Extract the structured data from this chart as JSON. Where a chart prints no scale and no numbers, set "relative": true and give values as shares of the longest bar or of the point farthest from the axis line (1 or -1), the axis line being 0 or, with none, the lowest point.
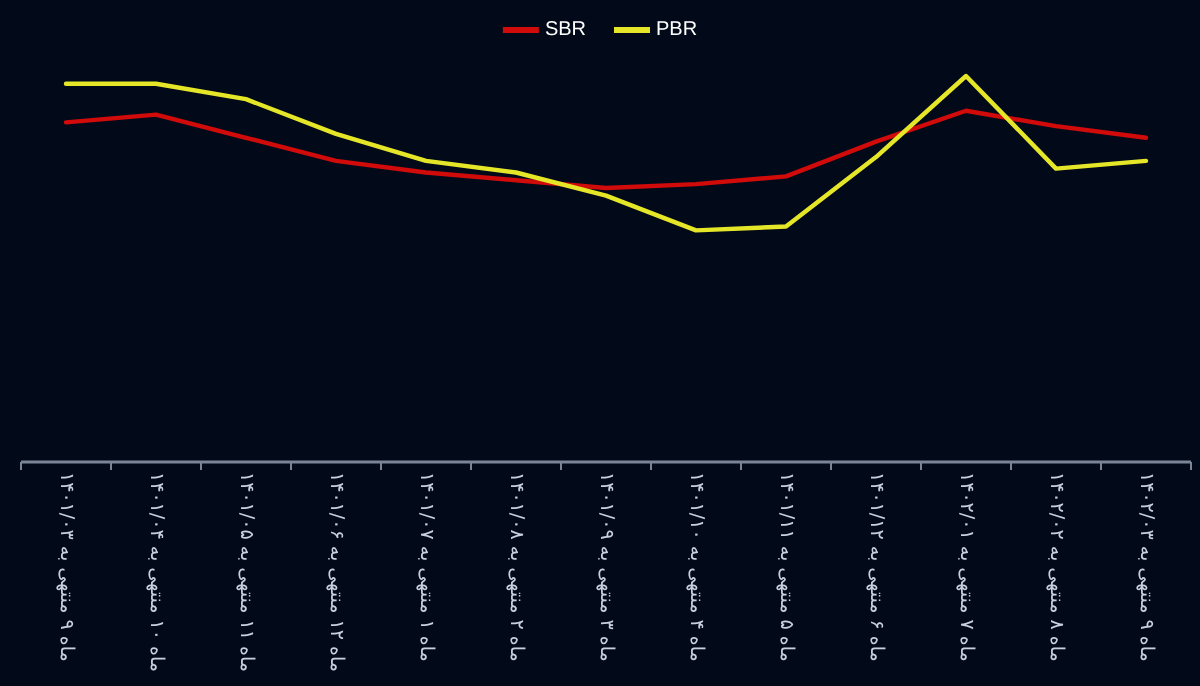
{
  "chart_data": {
    "type": "line",
    "relative": true,
    "legend": "top",
    "marker": "none",
    "line_style": "solid",
    "categories": [
      "ماه ۹ منتهی به ۱۴۰۱/۰۳",
      "ماه ۱۰ منتهی به ۱۴۰۱/۰۴",
      "ماه ۱۱ منتهی به ۱۴۰۱/۰۵",
      "ماه ۱۲ منتهی به ۱۴۰۱/۰۶",
      "ماه ۱ منتهی به ۱۴۰۱/۰۷",
      "ماه ۲ منتهی به ۱۴۰۱/۰۸",
      "ماه ۳ منتهی به ۱۴۰۱/۰۹",
      "ماه ۴ منتهی به ۱۴۰۱/۱۰",
      "ماه ۵ منتهی به ۱۴۰۱/۱۱",
      "ماه ۶ منتهی به ۱۴۰۱/۱۲",
      "ماه ۷ منتهی به ۱۴۰۲/۰۱",
      "ماه ۸ منتهی به ۱۴۰۲/۰۲",
      "ماه ۹ منتهی به ۱۴۰۲/۰۳"
    ],
    "series": [
      {
        "name": "SBR",
        "color": "#d10a0a",
        "values": [
          0.88,
          0.9,
          0.84,
          0.78,
          0.75,
          0.73,
          0.71,
          0.72,
          0.74,
          0.83,
          0.91,
          0.87,
          0.84
        ]
      },
      {
        "name": "PBR",
        "color": "#e6e628",
        "values": [
          0.98,
          0.98,
          0.94,
          0.85,
          0.78,
          0.75,
          0.69,
          0.6,
          0.61,
          0.79,
          1,
          0.76,
          0.78
        ]
      }
    ]
  }
}
